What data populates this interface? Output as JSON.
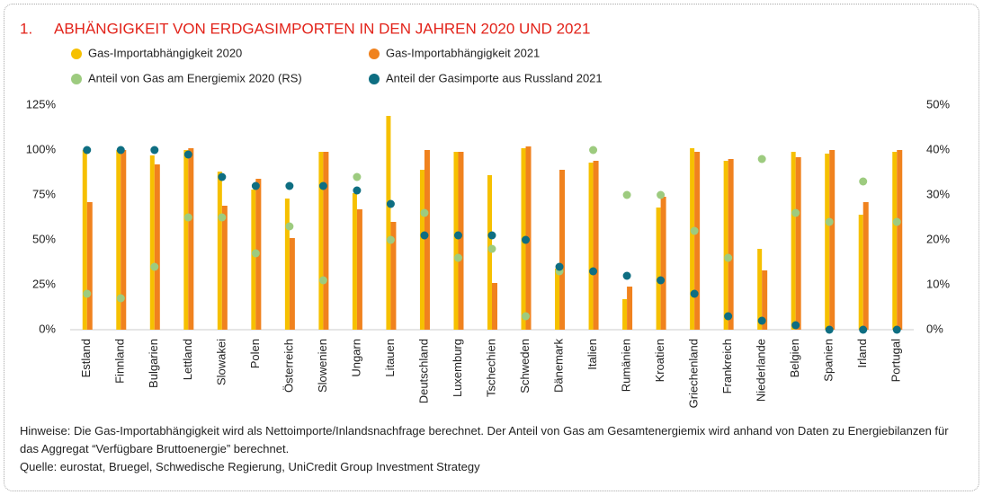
{
  "chart_data": {
    "type": "bar",
    "number": "1.",
    "title": "ABHÄNGIGKEIT VON ERDGASIMPORTEN IN DEN JAHREN 2020 UND 2021",
    "categories": [
      "Estland",
      "Finnland",
      "Bulgarien",
      "Lettland",
      "Slowakei",
      "Polen",
      "Österreich",
      "Slowenien",
      "Ungarn",
      "Litauen",
      "Deutschland",
      "Luxemburg",
      "Tschechien",
      "Schweden",
      "Dänemark",
      "Italien",
      "Rumänien",
      "Kroatien",
      "Griechenland",
      "Frankreich",
      "Niederlande",
      "Belgien",
      "Spanien",
      "Irland",
      "Portugal"
    ],
    "series": [
      {
        "name": "Gas-Importabhängigkeit 2020",
        "type": "bar",
        "color": "#f6c000",
        "values": [
          100,
          100,
          97,
          100,
          88,
          78,
          73,
          99,
          76,
          119,
          89,
          99,
          86,
          101,
          34,
          93,
          17,
          68,
          101,
          94,
          45,
          99,
          98,
          64,
          99
        ]
      },
      {
        "name": "Gas-Importabhängigkeit 2021",
        "type": "bar",
        "color": "#f0821e",
        "values": [
          71,
          100,
          92,
          101,
          69,
          84,
          51,
          99,
          67,
          60,
          100,
          99,
          26,
          102,
          89,
          94,
          24,
          74,
          99,
          95,
          33,
          96,
          100,
          71,
          100
        ]
      },
      {
        "name": "Anteil von Gas am Energiemix 2020 (RS)",
        "type": "scatter",
        "axis": "y2",
        "color": "#9dcb7f",
        "values": [
          8,
          7,
          14,
          25,
          25,
          17,
          23,
          11,
          34,
          20,
          26,
          16,
          18,
          3,
          13,
          40,
          30,
          30,
          22,
          16,
          38,
          26,
          24,
          33,
          24
        ]
      },
      {
        "name": "Anteil der Gasimporte aus Russland 2021",
        "type": "scatter",
        "axis": "y2",
        "color": "#0e6e82",
        "values": [
          40,
          40,
          40,
          39,
          34,
          32,
          32,
          32,
          31,
          28,
          21,
          21,
          21,
          20,
          14,
          13,
          12,
          11,
          8,
          3,
          2,
          1,
          0,
          0,
          0
        ]
      }
    ],
    "ylim": [
      0,
      125
    ],
    "yticks": [
      {
        "value": 0,
        "label": "0%"
      },
      {
        "value": 25,
        "label": "25%"
      },
      {
        "value": 50,
        "label": "50%"
      },
      {
        "value": 75,
        "label": "75%"
      },
      {
        "value": 100,
        "label": "100%"
      },
      {
        "value": 125,
        "label": "125%"
      }
    ],
    "y2lim": [
      0,
      50
    ],
    "y2ticks": [
      {
        "value": 0,
        "label": "0%"
      },
      {
        "value": 10,
        "label": "10%"
      },
      {
        "value": 20,
        "label": "20%"
      },
      {
        "value": 30,
        "label": "30%"
      },
      {
        "value": 40,
        "label": "40%"
      },
      {
        "value": 50,
        "label": "50%"
      }
    ],
    "note": "Hinweise: Die Gas-Importabhängigkeit wird als Nettoimporte/Inlandsnachfrage berechnet. Der Anteil von Gas am Gesamtenergiemix wird anhand von Daten zu Energiebilanzen für das Aggregat “Verfügbare Bruttoenergie” berechnet.",
    "source": "Quelle: eurostat, Bruegel, Schwedische Regierung, UniCredit Group Investment Strategy"
  }
}
